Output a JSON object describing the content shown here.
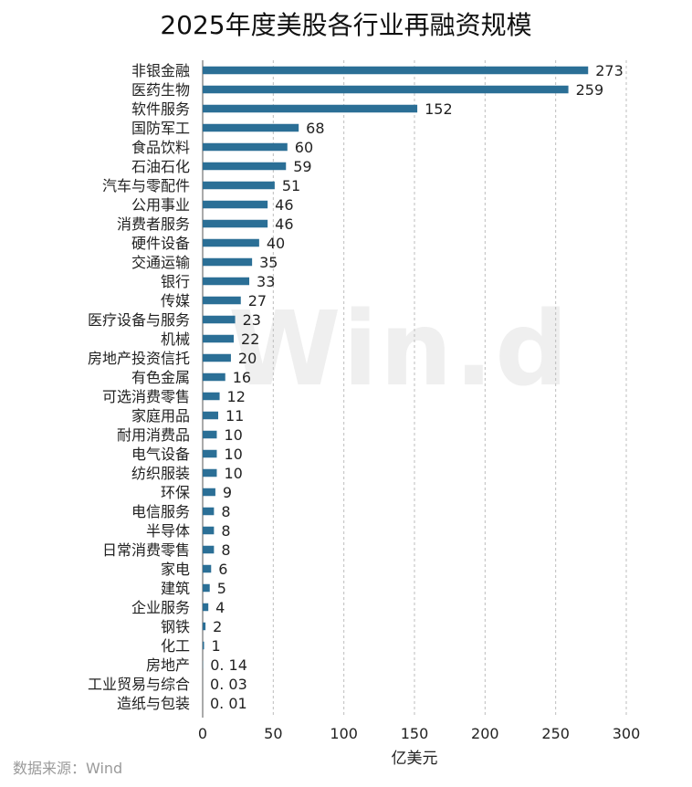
{
  "source_note": "数据来源：Wind",
  "watermark": "Win.d",
  "colors": {
    "bar": "#2b6f96",
    "grid": "#bdbdbd",
    "axis": "#555555"
  },
  "chart_data": {
    "type": "bar",
    "orientation": "horizontal",
    "title": "2025年度美股各行业再融资规模",
    "xlabel": "亿美元",
    "ylabel": "",
    "xlim": [
      0,
      300
    ],
    "xticks": [
      0,
      50,
      100,
      150,
      200,
      250,
      300
    ],
    "grid": "vertical-dashed",
    "categories": [
      "非银金融",
      "医药生物",
      "软件服务",
      "国防军工",
      "食品饮料",
      "石油石化",
      "汽车与零配件",
      "公用事业",
      "消费者服务",
      "硬件设备",
      "交通运输",
      "银行",
      "传媒",
      "医疗设备与服务",
      "机械",
      "房地产投资信托",
      "有色金属",
      "可选消费零售",
      "家庭用品",
      "耐用消费品",
      "电气设备",
      "纺织服装",
      "环保",
      "电信服务",
      "半导体",
      "日常消费零售",
      "家电",
      "建筑",
      "企业服务",
      "钢铁",
      "化工",
      "房地产",
      "工业贸易与综合",
      "造纸与包装"
    ],
    "values": [
      273,
      259,
      152,
      68,
      60,
      59,
      51,
      46,
      46,
      40,
      35,
      33,
      27,
      23,
      22,
      20,
      16,
      12,
      11,
      10,
      10,
      10,
      9,
      8,
      8,
      8,
      6,
      5,
      4,
      2,
      1,
      0.14,
      0.03,
      0.01
    ],
    "value_labels": [
      "273",
      "259",
      "152",
      "68",
      "60",
      "59",
      "51",
      "46",
      "46",
      "40",
      "35",
      "33",
      "27",
      "23",
      "22",
      "20",
      "16",
      "12",
      "11",
      "10",
      "10",
      "10",
      "9",
      "8",
      "8",
      "8",
      "6",
      "5",
      "4",
      "2",
      "1",
      "0. 14",
      "0. 03",
      "0. 01"
    ]
  }
}
